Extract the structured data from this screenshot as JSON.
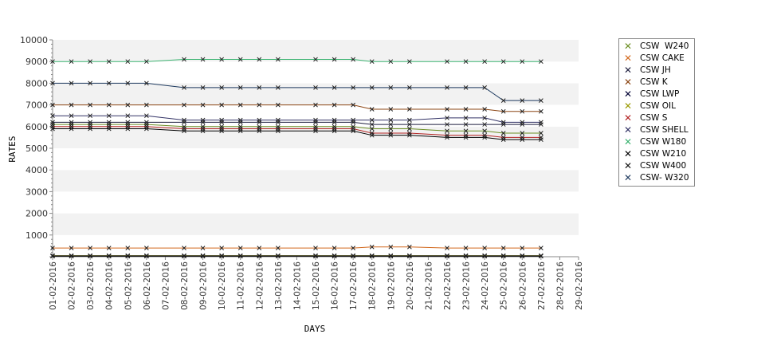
{
  "chart_data": {
    "type": "line",
    "title": "",
    "xlabel": "DAYS",
    "ylabel": "RATES",
    "ylim": [
      0,
      10000
    ],
    "yticks": [
      1000,
      2000,
      3000,
      4000,
      5000,
      6000,
      7000,
      8000,
      9000,
      10000
    ],
    "grid": "alternating horizontal bands",
    "legend_position": "right",
    "categories": [
      "01-02-2016",
      "02-02-2016",
      "03-02-2016",
      "04-02-2016",
      "05-02-2016",
      "06-02-2016",
      "07-02-2016",
      "08-02-2016",
      "09-02-2016",
      "10-02-2016",
      "11-02-2016",
      "12-02-2016",
      "13-02-2016",
      "14-02-2016",
      "15-02-2016",
      "16-02-2016",
      "17-02-2016",
      "18-02-2016",
      "19-02-2016",
      "20-02-2016",
      "21-02-2016",
      "22-02-2016",
      "23-02-2016",
      "24-02-2016",
      "25-02-2016",
      "26-02-2016",
      "27-02-2016",
      "28-02-2016",
      "29-02-2016"
    ],
    "series": [
      {
        "name": "CSW  W240",
        "color": "#6b8e23",
        "values": [
          6100,
          6100,
          6100,
          6100,
          6100,
          6100,
          null,
          6000,
          6000,
          6000,
          6000,
          6000,
          6000,
          null,
          6000,
          6000,
          6000,
          5900,
          5900,
          5900,
          null,
          5800,
          5800,
          5800,
          5700,
          5700,
          5700,
          null,
          null
        ]
      },
      {
        "name": "CSW CAKE",
        "color": "#d2691e",
        "values": [
          400,
          400,
          400,
          400,
          400,
          400,
          null,
          400,
          400,
          400,
          400,
          400,
          400,
          null,
          400,
          400,
          400,
          450,
          450,
          450,
          null,
          400,
          400,
          400,
          400,
          400,
          400,
          null,
          null
        ]
      },
      {
        "name": "CSW JH",
        "color": "#1f1f3f",
        "values": [
          6200,
          6200,
          6200,
          6200,
          6200,
          6200,
          null,
          6200,
          6200,
          6200,
          6200,
          6200,
          6200,
          null,
          6200,
          6200,
          6200,
          6100,
          6100,
          6100,
          null,
          6100,
          6100,
          6100,
          6100,
          6100,
          6100,
          null,
          null
        ]
      },
      {
        "name": "CSW K",
        "color": "#8b4513",
        "values": [
          7000,
          7000,
          7000,
          7000,
          7000,
          7000,
          null,
          7000,
          7000,
          7000,
          7000,
          7000,
          7000,
          null,
          7000,
          7000,
          7000,
          6800,
          6800,
          6800,
          null,
          6800,
          6800,
          6800,
          6700,
          6700,
          6700,
          null,
          null
        ]
      },
      {
        "name": "CSW LWP",
        "color": "#000033",
        "values": [
          50,
          50,
          50,
          50,
          50,
          50,
          null,
          50,
          50,
          50,
          50,
          50,
          50,
          null,
          50,
          50,
          50,
          50,
          50,
          50,
          null,
          50,
          50,
          50,
          50,
          50,
          50,
          null,
          null
        ]
      },
      {
        "name": "CSW OIL",
        "color": "#999900",
        "values": [
          30,
          30,
          30,
          30,
          30,
          30,
          null,
          30,
          30,
          30,
          30,
          30,
          30,
          null,
          30,
          30,
          30,
          30,
          30,
          30,
          null,
          30,
          30,
          30,
          30,
          30,
          30,
          null,
          null
        ]
      },
      {
        "name": "CSW S",
        "color": "#b22222",
        "values": [
          6000,
          6000,
          6000,
          6000,
          6000,
          6000,
          null,
          5900,
          5900,
          5900,
          5900,
          5900,
          5900,
          null,
          5900,
          5900,
          5900,
          5700,
          5700,
          5700,
          null,
          5600,
          5600,
          5600,
          5500,
          5500,
          5500,
          null,
          null
        ]
      },
      {
        "name": "CSW SHELL",
        "color": "#333366",
        "values": [
          6500,
          6500,
          6500,
          6500,
          6500,
          6500,
          null,
          6300,
          6300,
          6300,
          6300,
          6300,
          6300,
          null,
          6300,
          6300,
          6300,
          6300,
          6300,
          6300,
          null,
          6400,
          6400,
          6400,
          6200,
          6200,
          6200,
          null,
          null
        ]
      },
      {
        "name": "CSW W180",
        "color": "#3cb371",
        "values": [
          9000,
          9000,
          9000,
          9000,
          9000,
          9000,
          null,
          9100,
          9100,
          9100,
          9100,
          9100,
          9100,
          null,
          9100,
          9100,
          9100,
          9000,
          9000,
          9000,
          null,
          9000,
          9000,
          9000,
          9000,
          9000,
          9000,
          null,
          null
        ]
      },
      {
        "name": "CSW W210",
        "color": "#000000",
        "values": [
          5900,
          5900,
          5900,
          5900,
          5900,
          5900,
          null,
          5800,
          5800,
          5800,
          5800,
          5800,
          5800,
          null,
          5800,
          5800,
          5800,
          5600,
          5600,
          5600,
          null,
          5500,
          5500,
          5500,
          5400,
          5400,
          5400,
          null,
          null
        ]
      },
      {
        "name": "CSW W400",
        "color": "#111111",
        "values": [
          20,
          20,
          20,
          20,
          20,
          20,
          null,
          20,
          20,
          20,
          20,
          20,
          20,
          null,
          20,
          20,
          20,
          20,
          20,
          20,
          null,
          20,
          20,
          20,
          20,
          20,
          20,
          null,
          null
        ]
      },
      {
        "name": "CSW- W320",
        "color": "#1e3a5f",
        "values": [
          8000,
          8000,
          8000,
          8000,
          8000,
          8000,
          null,
          7800,
          7800,
          7800,
          7800,
          7800,
          7800,
          null,
          7800,
          7800,
          7800,
          7800,
          7800,
          7800,
          null,
          7800,
          7800,
          7800,
          7200,
          7200,
          7200,
          null,
          null
        ]
      }
    ]
  }
}
